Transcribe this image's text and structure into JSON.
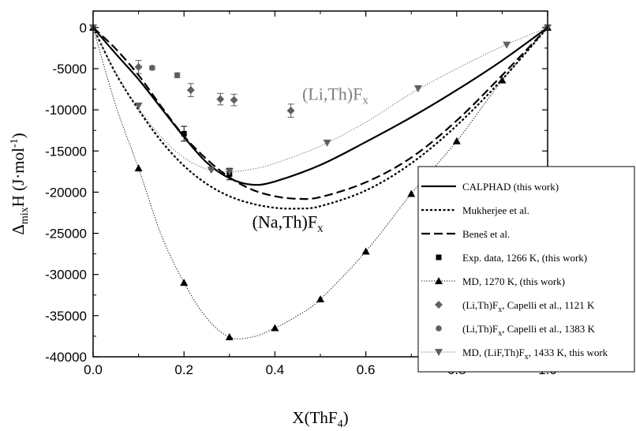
{
  "chart_data": {
    "type": "scatter",
    "xlabel": "X(ThF",
    "xlabel_sub": "4",
    "xlabel_end": ")",
    "ylabel_parts": [
      "Δ",
      "mix",
      "H (J·mol",
      "-1",
      ")"
    ],
    "xlim": [
      0,
      1
    ],
    "ylim": [
      -40000,
      2000
    ],
    "x_ticks": [
      0.0,
      0.2,
      0.4,
      0.6,
      0.8,
      1.0
    ],
    "x_tick_labels": [
      "0.0",
      "0.2",
      "0.4",
      "0.6",
      "0.8",
      "1.0"
    ],
    "y_ticks": [
      0,
      -5000,
      -10000,
      -15000,
      -20000,
      -25000,
      -30000,
      -35000,
      -40000
    ],
    "y_tick_labels": [
      "0",
      "-5000",
      "-10000",
      "-15000",
      "-20000",
      "-25000",
      "-30000",
      "-35000",
      "-40000"
    ],
    "grid": false,
    "legend_position": "right",
    "annotations": [
      {
        "main": "(Li,Th)F",
        "sub": "x",
        "x": 0.46,
        "y": -8800,
        "color": "#808080"
      },
      {
        "main": "(Na,Th)F",
        "sub": "x",
        "x": 0.35,
        "y": -24300,
        "color": "#000000"
      }
    ],
    "series": [
      {
        "name": "CALPHAD (this work)",
        "style": "solid",
        "color": "#000000",
        "x": [
          0,
          0.05,
          0.1,
          0.15,
          0.2,
          0.25,
          0.3,
          0.35,
          0.4,
          0.5,
          0.6,
          0.7,
          0.8,
          0.9,
          1.0
        ],
        "y": [
          0,
          -3200,
          -6300,
          -9800,
          -13300,
          -16400,
          -18300,
          -19100,
          -18700,
          -16700,
          -13900,
          -10900,
          -7600,
          -4000,
          0
        ]
      },
      {
        "name": "Mukherjee et al.",
        "style": "dotted",
        "color": "#000000",
        "x": [
          0,
          0.05,
          0.1,
          0.15,
          0.2,
          0.25,
          0.3,
          0.35,
          0.4,
          0.45,
          0.5,
          0.6,
          0.7,
          0.8,
          0.9,
          1.0
        ],
        "y": [
          0,
          -5600,
          -10000,
          -13800,
          -16800,
          -19000,
          -20500,
          -21400,
          -21900,
          -22000,
          -21700,
          -19800,
          -16500,
          -11900,
          -6300,
          0
        ]
      },
      {
        "name": "Beneš et al.",
        "style": "dashed",
        "color": "#000000",
        "x": [
          0,
          0.05,
          0.1,
          0.15,
          0.2,
          0.25,
          0.3,
          0.35,
          0.4,
          0.45,
          0.5,
          0.6,
          0.7,
          0.8,
          0.9,
          1.0
        ],
        "y": [
          0,
          -2600,
          -5800,
          -9600,
          -13200,
          -16000,
          -18200,
          -19700,
          -20500,
          -20800,
          -20600,
          -18800,
          -15800,
          -11300,
          -5800,
          0
        ]
      },
      {
        "name": "Exp. data, 1266 K, (this work)",
        "style": "marker",
        "marker": "square",
        "color": "#000000",
        "x": [
          0.2,
          0.3
        ],
        "y": [
          -12900,
          -17800
        ],
        "err": [
          900,
          700
        ]
      },
      {
        "name": "MD, 1270 K, (this work)",
        "style": "dotted-thin",
        "marker": "triangle-up",
        "color": "#000000",
        "x": [
          0,
          0.1,
          0.2,
          0.3,
          0.4,
          0.5,
          0.6,
          0.7,
          0.8,
          0.9,
          1.0
        ],
        "y": [
          0,
          -17100,
          -31000,
          -37600,
          -36500,
          -33000,
          -27200,
          -20200,
          -13800,
          -6400,
          0
        ],
        "curve_x": [
          0,
          0.05,
          0.1,
          0.15,
          0.2,
          0.25,
          0.3,
          0.35,
          0.4,
          0.45,
          0.5,
          0.6,
          0.7,
          0.8,
          0.9,
          1.0
        ],
        "curve_y": [
          0,
          -9500,
          -17100,
          -25200,
          -31000,
          -35300,
          -37600,
          -37600,
          -36500,
          -35000,
          -33000,
          -27200,
          -20200,
          -13800,
          -6400,
          0
        ]
      },
      {
        "name_main": "(Li,Th)F",
        "name_sub": "x",
        "name_rest": ", Capelli et al., 1121 K",
        "style": "marker",
        "marker": "diamond",
        "color": "#606060",
        "x": [
          0.1,
          0.215,
          0.28,
          0.31,
          0.435
        ],
        "y": [
          -4800,
          -7600,
          -8700,
          -8800,
          -10100
        ],
        "err": [
          800,
          800,
          700,
          700,
          800
        ]
      },
      {
        "name_main": "(Li,Th)F",
        "name_sub": "x",
        "name_rest": ", Capelli et al., 1383 K",
        "style": "marker",
        "marker": "circle",
        "color": "#606060",
        "x": [
          0.13,
          0.185
        ],
        "y": [
          -4900,
          -5800
        ],
        "err": [
          200,
          300
        ]
      },
      {
        "name_main": "MD, (LiF,Th)F",
        "name_sub": "x",
        "name_rest": ", 1433 K, this work",
        "style": "dotted-thin",
        "marker": "triangle-down",
        "color": "#606060",
        "x": [
          0,
          0.1,
          0.26,
          0.3,
          0.515,
          0.715,
          0.91,
          1.0
        ],
        "y": [
          0,
          -9500,
          -17300,
          -17500,
          -14000,
          -7400,
          -2100,
          0
        ],
        "curve_x": [
          0,
          0.05,
          0.1,
          0.15,
          0.2,
          0.25,
          0.3,
          0.35,
          0.4,
          0.5,
          0.6,
          0.7,
          0.8,
          0.9,
          1.0
        ],
        "curve_y": [
          0,
          -5500,
          -9800,
          -13300,
          -15800,
          -17200,
          -17500,
          -17200,
          -16500,
          -14400,
          -11500,
          -8000,
          -5000,
          -2300,
          0
        ]
      }
    ]
  }
}
